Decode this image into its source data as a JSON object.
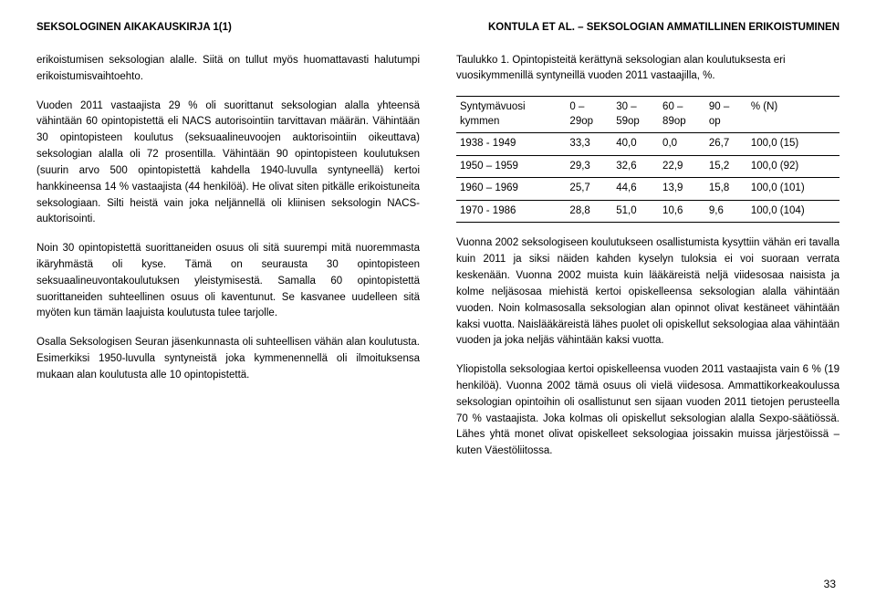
{
  "header": {
    "left": "SEKSOLOGINEN AIKAKAUSKIRJA 1(1)",
    "right": "KONTULA ET AL. – SEKSOLOGIAN AMMATILLINEN ERIKOISTUMINEN"
  },
  "left_col": {
    "p1": "erikoistumisen seksologian alalle. Siitä on tullut myös huomattavasti halutumpi erikoistumisvaihtoehto.",
    "p2": "Vuoden 2011 vastaajista 29 % oli suorittanut seksologian alalla yhteensä vähintään 60 opintopistettä eli NACS autorisointiin tarvittavan määrän. Vähintään 30 opintopisteen koulutus (seksuaalineuvoojen auktorisointiin oikeuttava) seksologian alalla oli 72 prosentilla. Vähintään 90 opintopisteen koulutuksen (suurin arvo 500 opintopistettä kahdella 1940-luvulla syntyneellä) kertoi hankkineensa 14 % vastaajista (44 henkilöä). He olivat siten pitkälle erikoistuneita seksologiaan. Silti heistä vain joka neljännellä oli kliinisen seksologin NACS-auktorisointi.",
    "p3": "Noin 30 opintopistettä suorittaneiden osuus oli sitä suurempi mitä nuoremmasta ikäryhmästä oli kyse. Tämä on seurausta 30 opintopisteen seksuaalineuvontakoulutuksen yleistymisestä. Samalla 60 opintopistettä suorittaneiden suhteellinen osuus oli kaventunut. Se kasvanee uudelleen sitä myöten kun tämän laajuista koulutusta tulee tarjolle.",
    "p4": "Osalla Seksologisen Seuran jäsenkunnasta oli suhteellisen vähän alan koulutusta. Esimerkiksi 1950-luvulla syntyneistä joka kymmenennellä oli ilmoituksensa mukaan alan koulutusta alle 10 opintopistettä."
  },
  "right_col": {
    "caption": "Taulukko 1. Opintopisteitä kerättynä seksologian alan koulutuksesta eri vuosikymmenillä syntyneillä vuoden 2011 vastaajilla, %.",
    "table": {
      "head": {
        "c0a": "Syntymävuosi",
        "c0b": "kymmen",
        "c1a": "0 –",
        "c1b": "29op",
        "c2a": "30 –",
        "c2b": "59op",
        "c3a": "60 –",
        "c3b": "89op",
        "c4a": "90 –",
        "c4b": "op",
        "c5": "%  (N)"
      },
      "rows": [
        {
          "c0": "1938 - 1949",
          "c1": "33,3",
          "c2": "40,0",
          "c3": "0,0",
          "c4": "26,7",
          "c5": "100,0 (15)"
        },
        {
          "c0": "1950 – 1959",
          "c1": "29,3",
          "c2": "32,6",
          "c3": "22,9",
          "c4": "15,2",
          "c5": "100,0 (92)"
        },
        {
          "c0": "1960 – 1969",
          "c1": "25,7",
          "c2": "44,6",
          "c3": "13,9",
          "c4": "15,8",
          "c5": "100,0 (101)"
        },
        {
          "c0": "1970 - 1986",
          "c1": "28,8",
          "c2": "51,0",
          "c3": "10,6",
          "c4": "9,6",
          "c5": "100,0 (104)"
        }
      ]
    },
    "p1": "Vuonna 2002 seksologiseen koulutukseen osallistumista kysyttiin vähän eri tavalla kuin 2011 ja siksi näiden kahden kyselyn tuloksia ei voi suoraan verrata keskenään. Vuonna 2002 muista kuin lääkäreistä neljä viidesosaa naisista ja kolme neljäsosaa miehistä kertoi opiskelleensa seksologian alalla vähintään vuoden. Noin kolmasosalla seksologian alan opinnot olivat kestäneet vähintään kaksi vuotta. Naislääkäreistä lähes puolet oli opiskellut seksologiaa alaa vähintään vuoden ja joka neljäs vähintään kaksi vuotta.",
    "p2": "Yliopistolla seksologiaa kertoi opiskelleensa vuoden 2011 vastaajista vain 6 % (19 henkilöä). Vuonna 2002 tämä osuus oli vielä viidesosa. Ammattikorkeakoulussa seksologian opintoihin oli osallistunut sen sijaan vuoden 2011 tietojen perusteella 70 % vastaajista. Joka kolmas oli opiskellut seksologian alalla Sexpo-säätiössä. Lähes yhtä monet olivat opiskelleet seksologiaa joissakin muissa järjestöissä – kuten Väestöliitossa."
  },
  "pagenum": "33"
}
